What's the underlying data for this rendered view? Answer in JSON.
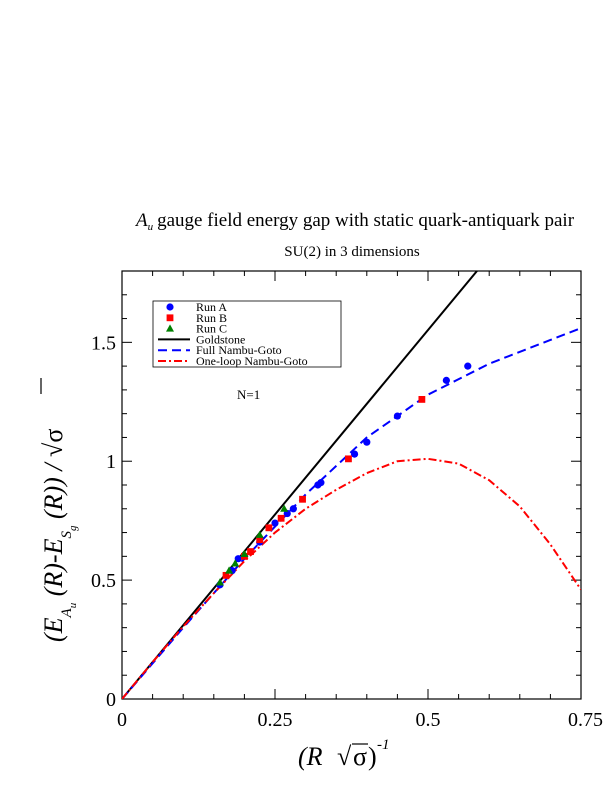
{
  "chart_data": {
    "type": "scatter",
    "title_main": "gauge field energy gap with static quark-antiquark pair",
    "title_symbol": "A",
    "title_symbol_sub": "u",
    "subtitle": "SU(2) in 3 dimensions",
    "annotation": "N=1",
    "xlim": [
      0,
      0.75
    ],
    "ylim": [
      0,
      1.8
    ],
    "x_ticks": [
      0,
      0.25,
      0.5,
      0.75
    ],
    "x_tick_labels": [
      "0",
      "0.25",
      "0.5",
      "0.75"
    ],
    "y_ticks": [
      0,
      0.5,
      1,
      1.5
    ],
    "y_tick_labels": [
      "0",
      "0.5",
      "1",
      "1.5"
    ],
    "xlabel": {
      "open": "(R ",
      "sqrt": "√",
      "sigma": "σ",
      "close": ")",
      "exponent": "-1"
    },
    "ylabel": {
      "open": "(E",
      "sub_a": "A",
      "sub_u": "u",
      "mid": " (R)-E",
      "sub_s": "S",
      "sub_g": "g",
      "end": " (R)) / ",
      "sqrt": "√",
      "sigma": "σ"
    },
    "grid": false,
    "legend_position": "top-left",
    "series": [
      {
        "name": "Run A",
        "kind": "points",
        "marker": "circle",
        "color": "#0000ff",
        "x": [
          0.16,
          0.18,
          0.19,
          0.2,
          0.225,
          0.25,
          0.27,
          0.28,
          0.32,
          0.325,
          0.38,
          0.4,
          0.45,
          0.53,
          0.565
        ],
        "y": [
          0.48,
          0.54,
          0.59,
          0.6,
          0.66,
          0.74,
          0.78,
          0.8,
          0.9,
          0.91,
          1.03,
          1.08,
          1.19,
          1.34,
          1.4
        ]
      },
      {
        "name": "Run B",
        "kind": "points",
        "marker": "square",
        "color": "#ff0000",
        "x": [
          0.17,
          0.2,
          0.21,
          0.225,
          0.24,
          0.26,
          0.295,
          0.37,
          0.49
        ],
        "y": [
          0.52,
          0.6,
          0.62,
          0.67,
          0.72,
          0.76,
          0.84,
          1.01,
          1.26
        ]
      },
      {
        "name": "Run C",
        "kind": "points",
        "marker": "triangle",
        "color": "#008000",
        "x": [
          0.16,
          0.175,
          0.185,
          0.2,
          0.225,
          0.265
        ],
        "y": [
          0.49,
          0.54,
          0.57,
          0.61,
          0.69,
          0.8
        ]
      },
      {
        "name": "Goldstone",
        "kind": "line",
        "style": "solid",
        "color": "#000000",
        "x": [
          0,
          0.58
        ],
        "y": [
          0,
          1.8
        ]
      },
      {
        "name": "Full Nambu-Goto",
        "kind": "line",
        "style": "dashed",
        "color": "#0000ff",
        "x": [
          0,
          0.1,
          0.2,
          0.3,
          0.4,
          0.5,
          0.6,
          0.7,
          0.75
        ],
        "y": [
          0,
          0.3,
          0.59,
          0.86,
          1.1,
          1.28,
          1.41,
          1.51,
          1.56
        ]
      },
      {
        "name": "One-loop Nambu-Goto",
        "kind": "line",
        "style": "dashdot",
        "color": "#ff0000",
        "x": [
          0,
          0.05,
          0.1,
          0.15,
          0.2,
          0.25,
          0.3,
          0.35,
          0.4,
          0.45,
          0.5,
          0.55,
          0.6,
          0.65,
          0.7,
          0.75
        ],
        "y": [
          0,
          0.155,
          0.305,
          0.445,
          0.58,
          0.7,
          0.8,
          0.88,
          0.95,
          1.0,
          1.01,
          0.99,
          0.92,
          0.81,
          0.65,
          0.46
        ]
      }
    ]
  }
}
